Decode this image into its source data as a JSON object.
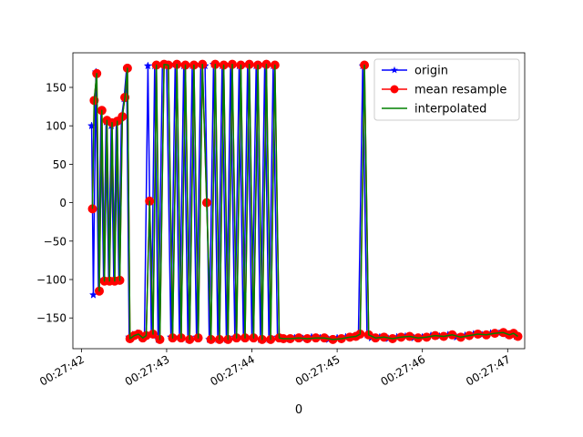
{
  "chart_data": {
    "type": "line",
    "xlabel": "0",
    "ylabel": "",
    "title": "",
    "x_tick_labels": [
      "00:27:42",
      "00:27:43",
      "00:27:44",
      "00:27:45",
      "00:27:46",
      "00:27:47"
    ],
    "x_tick_seconds": [
      42,
      43,
      44,
      45,
      46,
      47
    ],
    "y_ticks": [
      150,
      100,
      50,
      0,
      -50,
      -100,
      -150
    ],
    "xlim_seconds": [
      41.9,
      47.2
    ],
    "ylim": [
      -190,
      195
    ],
    "legend_position": "top-right",
    "grid": false,
    "series": [
      {
        "name": "origin",
        "color": "#0000ff",
        "marker": "star",
        "x_seconds": [
          42.12,
          42.14,
          42.17,
          42.2,
          42.23,
          42.26,
          42.29,
          42.32,
          42.35,
          42.38,
          42.41,
          42.44,
          42.47,
          42.5,
          42.53,
          42.56,
          42.6,
          42.65,
          42.7,
          42.74,
          42.78,
          42.82,
          42.86,
          42.9,
          42.95,
          43.0,
          43.05,
          43.1,
          43.15,
          43.2,
          43.25,
          43.3,
          43.35,
          43.4,
          43.45,
          43.5,
          43.55,
          43.6,
          43.65,
          43.7,
          43.75,
          43.8,
          43.85,
          43.9,
          43.95,
          44.0,
          44.05,
          44.1,
          44.15,
          44.2,
          44.25,
          44.3,
          44.35,
          44.4,
          44.5,
          44.6,
          44.7,
          44.8,
          44.9,
          45.0,
          45.1,
          45.2,
          45.25,
          45.3,
          45.35,
          45.4,
          45.5,
          45.6,
          45.7,
          45.8,
          45.9,
          46.0,
          46.1,
          46.2,
          46.3,
          46.4,
          46.5,
          46.6,
          46.7,
          46.8,
          46.9,
          47.0,
          47.05,
          47.1
        ],
        "y": [
          100,
          -120,
          170,
          -115,
          120,
          -100,
          105,
          -100,
          100,
          -100,
          105,
          -100,
          110,
          135,
          175,
          -175,
          -172,
          -170,
          -175,
          -172,
          178,
          -170,
          178,
          -178,
          180,
          178,
          -175,
          180,
          -175,
          178,
          -178,
          178,
          -175,
          180,
          178,
          -178,
          180,
          -178,
          178,
          -178,
          180,
          -175,
          178,
          -175,
          180,
          -175,
          178,
          -178,
          180,
          -178,
          178,
          -175,
          -176,
          -178,
          -176,
          -177,
          -175,
          -176,
          -178,
          -176,
          -175,
          -174,
          -170,
          178,
          -172,
          -176,
          -175,
          -177,
          -175,
          -174,
          -176,
          -175,
          -173,
          -174,
          -172,
          -175,
          -173,
          -171,
          -172,
          -170,
          -170,
          -172,
          -170,
          -174
        ]
      },
      {
        "name": "mean resample",
        "color": "#ff0000",
        "marker": "circle",
        "x_seconds": [
          42.13,
          42.15,
          42.18,
          42.21,
          42.24,
          42.27,
          42.3,
          42.33,
          42.36,
          42.39,
          42.42,
          42.45,
          42.48,
          42.51,
          42.54,
          42.57,
          42.62,
          42.67,
          42.72,
          42.76,
          42.8,
          42.84,
          42.88,
          42.92,
          42.97,
          43.02,
          43.07,
          43.12,
          43.17,
          43.22,
          43.27,
          43.32,
          43.37,
          43.42,
          43.47,
          43.52,
          43.57,
          43.62,
          43.67,
          43.72,
          43.77,
          43.82,
          43.87,
          43.92,
          43.97,
          44.02,
          44.07,
          44.12,
          44.17,
          44.22,
          44.27,
          44.32,
          44.37,
          44.45,
          44.55,
          44.65,
          44.75,
          44.85,
          44.95,
          45.05,
          45.15,
          45.22,
          45.27,
          45.32,
          45.37,
          45.45,
          45.55,
          45.65,
          45.75,
          45.85,
          45.95,
          46.05,
          46.15,
          46.25,
          46.35,
          46.45,
          46.55,
          46.65,
          46.75,
          46.85,
          46.95,
          47.02,
          47.07,
          47.12
        ],
        "y": [
          -8,
          133,
          168,
          -115,
          120,
          -102,
          107,
          -102,
          104,
          -102,
          106,
          -101,
          112,
          137,
          175,
          -177,
          -173,
          -171,
          -176,
          -173,
          2,
          -171,
          179,
          -178,
          180,
          179,
          -176,
          180,
          -176,
          179,
          -178,
          179,
          -176,
          180,
          0,
          -178,
          180,
          -178,
          179,
          -178,
          180,
          -176,
          179,
          -176,
          180,
          -176,
          179,
          -178,
          180,
          -178,
          179,
          -176,
          -177,
          -177,
          -176,
          -177,
          -176,
          -176,
          -178,
          -177,
          -175,
          -174,
          -171,
          179,
          -172,
          -176,
          -175,
          -177,
          -175,
          -174,
          -176,
          -175,
          -173,
          -174,
          -172,
          -175,
          -173,
          -171,
          -172,
          -170,
          -169,
          -172,
          -170,
          -174
        ]
      },
      {
        "name": "interpolated",
        "color": "#008000",
        "marker": "none",
        "x_seconds": [
          42.13,
          42.15,
          42.18,
          42.21,
          42.24,
          42.27,
          42.3,
          42.33,
          42.36,
          42.39,
          42.42,
          42.45,
          42.48,
          42.51,
          42.54,
          42.57,
          42.62,
          42.67,
          42.72,
          42.76,
          42.8,
          42.84,
          42.88,
          42.92,
          42.97,
          43.02,
          43.07,
          43.12,
          43.17,
          43.22,
          43.27,
          43.32,
          43.37,
          43.42,
          43.47,
          43.52,
          43.57,
          43.62,
          43.67,
          43.72,
          43.77,
          43.82,
          43.87,
          43.92,
          43.97,
          44.02,
          44.07,
          44.12,
          44.17,
          44.22,
          44.27,
          44.32,
          44.37,
          44.45,
          44.55,
          44.65,
          44.75,
          44.85,
          44.95,
          45.05,
          45.15,
          45.22,
          45.27,
          45.32,
          45.37,
          45.45,
          45.55,
          45.65,
          45.75,
          45.85,
          45.95,
          46.05,
          46.15,
          46.25,
          46.35,
          46.45,
          46.55,
          46.65,
          46.75,
          46.85,
          46.95,
          47.02,
          47.07,
          47.12
        ],
        "y": [
          -8,
          133,
          168,
          -115,
          120,
          -102,
          107,
          -102,
          104,
          -102,
          106,
          -101,
          112,
          137,
          175,
          -177,
          -173,
          -171,
          -176,
          -173,
          2,
          -171,
          179,
          -178,
          180,
          179,
          -176,
          180,
          -176,
          179,
          -178,
          179,
          -176,
          180,
          0,
          -178,
          180,
          -178,
          179,
          -178,
          180,
          -176,
          179,
          -176,
          180,
          -176,
          179,
          -178,
          180,
          -178,
          179,
          -176,
          -177,
          -177,
          -176,
          -177,
          -176,
          -176,
          -178,
          -177,
          -175,
          -174,
          -171,
          179,
          -172,
          -176,
          -175,
          -177,
          -175,
          -174,
          -176,
          -175,
          -173,
          -174,
          -172,
          -175,
          -173,
          -171,
          -172,
          -170,
          -169,
          -172,
          -170,
          -174
        ]
      }
    ]
  }
}
